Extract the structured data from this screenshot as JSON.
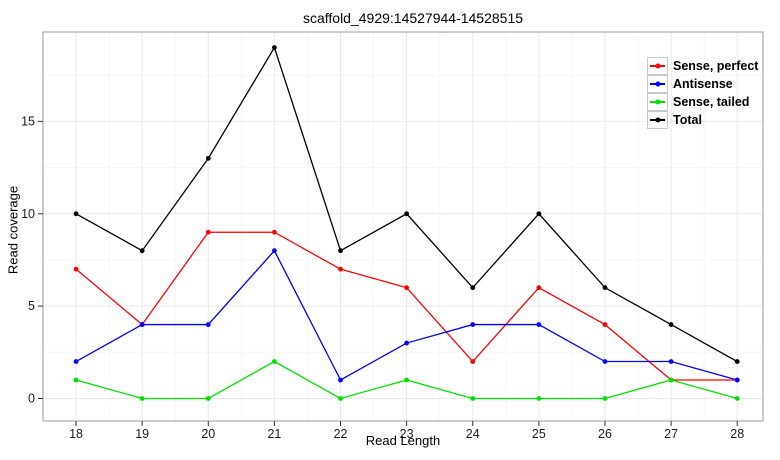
{
  "title": "scaffold_4929:14527944-14528515",
  "chart_data": {
    "type": "line",
    "title": "scaffold_4929:14527944-14528515",
    "xlabel": "Read Length",
    "ylabel": "Read coverage",
    "x": [
      18,
      19,
      20,
      21,
      22,
      23,
      24,
      25,
      26,
      27,
      28
    ],
    "series": [
      {
        "name": "Sense, perfect",
        "color": "#ff0000",
        "values": [
          7,
          4,
          9,
          9,
          7,
          6,
          2,
          6,
          4,
          1,
          1
        ]
      },
      {
        "name": "Antisense",
        "color": "#0000ff",
        "values": [
          2,
          4,
          4,
          8,
          1,
          3,
          4,
          4,
          2,
          2,
          1
        ]
      },
      {
        "name": "Sense, tailed",
        "color": "#00e000",
        "values": [
          1,
          0,
          0,
          2,
          0,
          1,
          0,
          0,
          0,
          1,
          0
        ]
      },
      {
        "name": "Total",
        "color": "#000000",
        "values": [
          10,
          8,
          13,
          19,
          8,
          10,
          6,
          10,
          6,
          4,
          2
        ]
      }
    ],
    "x_ticks": [
      18,
      19,
      20,
      21,
      22,
      23,
      24,
      25,
      26,
      27,
      28
    ],
    "y_ticks": [
      0,
      5,
      10,
      15
    ],
    "x_minor_ticks": [
      18.5,
      19.5,
      20.5,
      21.5,
      22.5,
      23.5,
      24.5,
      25.5,
      26.5,
      27.5
    ],
    "y_minor_ticks": [
      2.5,
      7.5,
      12.5,
      17.5
    ],
    "xlim": [
      17.5,
      28.39
    ],
    "ylim": [
      -1.22,
      19.84
    ],
    "grid": true,
    "legend_position": "top-right"
  },
  "colors": {
    "background": "#ffffff",
    "panel_bg": "#ffffff",
    "panel_border": "#999999",
    "grid_major": "#e9e9e9",
    "grid_minor": "#f5f5f5",
    "tick": "#333333",
    "tick_text": "#1a1a1a",
    "legend_key_border": "#c9c9c9",
    "legend_key_bg": "#ffffff"
  }
}
